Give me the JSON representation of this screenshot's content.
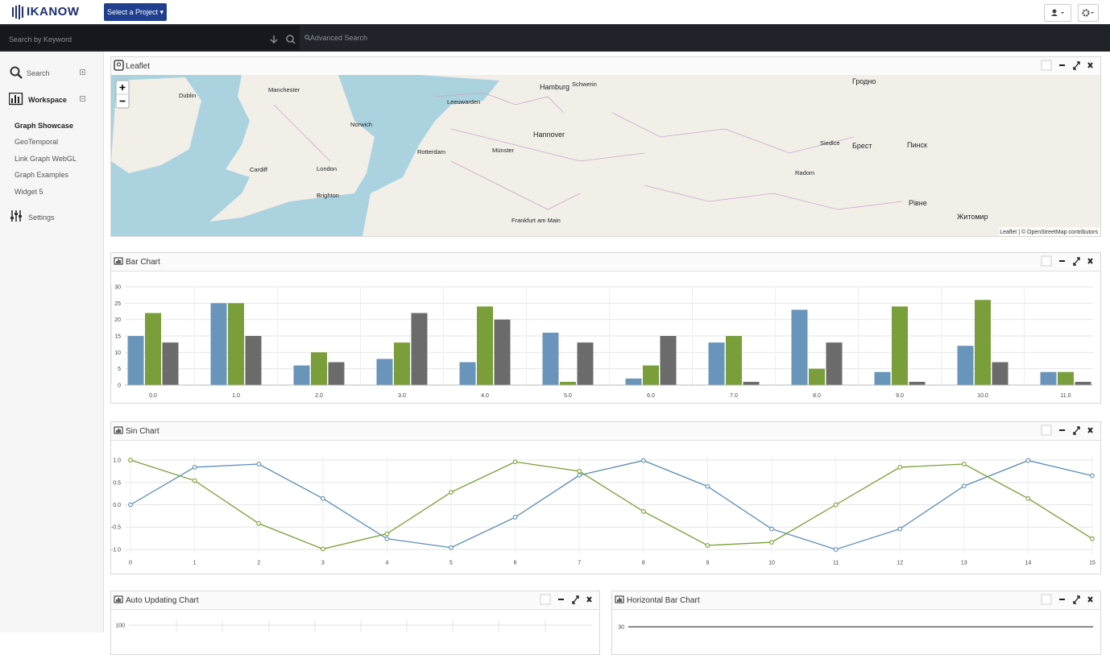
{
  "header": {
    "logo": "IKANOW",
    "project_button": "Select a Project"
  },
  "search": {
    "placeholder": "Search by Keyword",
    "advanced": "Advanced Search"
  },
  "sidebar": {
    "search": "Search",
    "workspace": "Workspace",
    "items": [
      "Graph Showcase",
      "GeoTemporal",
      "Link Graph WebGL",
      "Graph Examples",
      "Widget 5"
    ],
    "settings": "Settings"
  },
  "map": {
    "title": "Leaflet",
    "labels": [
      "Dublin",
      "Manchester",
      "Norwich",
      "Cardiff",
      "London",
      "Brighton",
      "Leeuwarden",
      "Hamburg",
      "Schwerin",
      "Rotterdam",
      "Münster",
      "Hannover",
      "Frankfurt am Main",
      "Radom",
      "Siedlce",
      "Гродно",
      "Брест",
      "Пинск",
      "Рівне",
      "Житомир"
    ],
    "attribution": "Leaflet | © OpenStreetMap contributors"
  },
  "chart_data": [
    {
      "type": "bar",
      "title": "Bar Chart",
      "categories": [
        "0.0",
        "1.0",
        "2.0",
        "3.0",
        "4.0",
        "5.0",
        "6.0",
        "7.0",
        "8.0",
        "9.0",
        "10.0",
        "11.0"
      ],
      "series": [
        {
          "color": "#6a95bb",
          "values": [
            15,
            25,
            6,
            8,
            7,
            16,
            2,
            13,
            23,
            4,
            12,
            4
          ]
        },
        {
          "color": "#7a9f3a",
          "values": [
            22,
            25,
            10,
            13,
            24,
            1,
            6,
            15,
            5,
            24,
            26,
            4
          ]
        },
        {
          "color": "#6b6b6b",
          "values": [
            13,
            15,
            7,
            22,
            20,
            13,
            15,
            1,
            13,
            1,
            7,
            1
          ]
        }
      ],
      "ylim": [
        0,
        30
      ],
      "yticks": [
        0,
        5,
        10,
        15,
        20,
        25,
        30
      ],
      "grid": true
    },
    {
      "type": "line",
      "title": "Sin Chart",
      "x": [
        0,
        1,
        2,
        3,
        4,
        5,
        6,
        7,
        8,
        9,
        10,
        11,
        12,
        13,
        14,
        15
      ],
      "series": [
        {
          "color": "#5b8db8",
          "values": [
            0,
            0.84,
            0.91,
            0.14,
            -0.76,
            -0.96,
            -0.28,
            0.66,
            0.99,
            0.41,
            -0.54,
            -1.0,
            -0.54,
            0.42,
            0.99,
            0.65
          ]
        },
        {
          "color": "#76a033",
          "values": [
            1.0,
            0.54,
            -0.42,
            -0.99,
            -0.65,
            0.28,
            0.96,
            0.75,
            -0.15,
            -0.91,
            -0.84,
            0.0,
            0.84,
            0.91,
            0.14,
            -0.76
          ]
        }
      ],
      "xlim": [
        0,
        15
      ],
      "xticks": [
        0,
        1,
        2,
        3,
        4,
        5,
        6,
        7,
        8,
        9,
        10,
        11,
        12,
        13,
        14,
        15
      ],
      "ylim": [
        -1.1,
        1.1
      ],
      "yticks": [
        {
          "value": -1,
          "label": "-1.0"
        },
        -0.5,
        {
          "value": 0,
          "label": "0.0"
        },
        0.5,
        {
          "value": 1,
          "label": "1.0"
        }
      ],
      "grid": true
    },
    {
      "type": "line",
      "title": "Auto Updating Chart",
      "ylim": [
        0,
        100
      ],
      "yticks": [
        100
      ],
      "grid": true
    },
    {
      "type": "bar",
      "title": "Horizontal Bar Chart",
      "ylim": [
        0,
        30
      ],
      "yticks": [
        30
      ],
      "grid": true
    }
  ]
}
